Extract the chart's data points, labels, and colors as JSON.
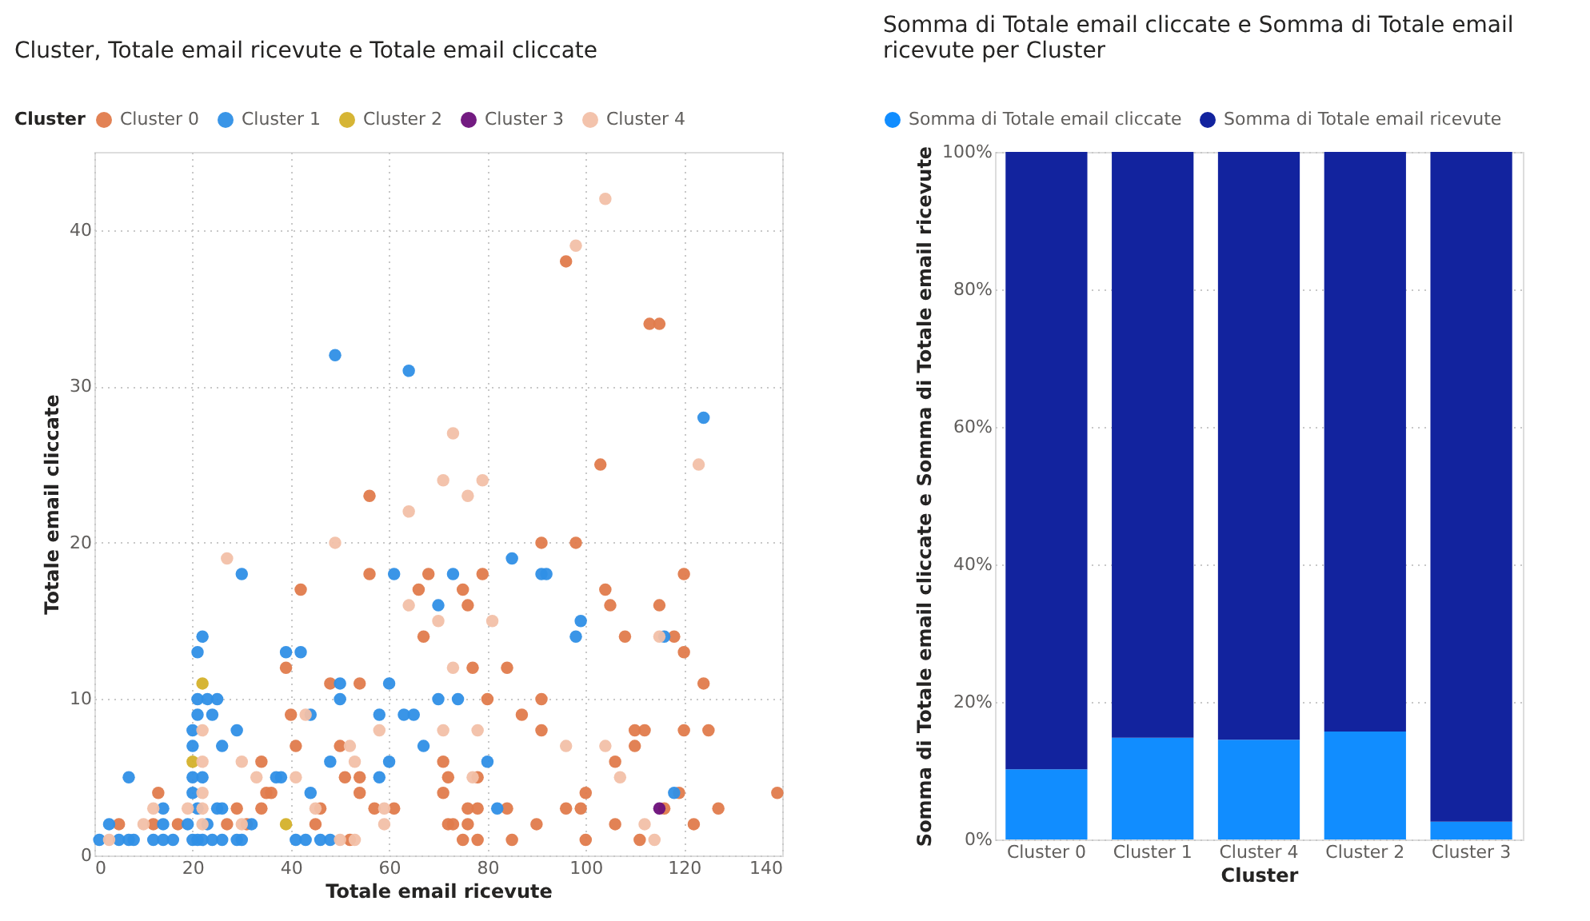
{
  "chart_data": [
    {
      "type": "scatter",
      "title": "Cluster, Totale email ricevute e Totale email cliccate",
      "xlabel": "Totale email ricevute",
      "ylabel": "Totale email cliccate",
      "legend_title": "Cluster",
      "legend": "top left",
      "grid": true,
      "marker": "circle",
      "xlim": [
        0,
        140
      ],
      "xticks": [
        0,
        20,
        40,
        60,
        80,
        100,
        120,
        140
      ],
      "ylim": [
        0,
        45
      ],
      "yticks": [
        0,
        10,
        20,
        30,
        40
      ],
      "series": [
        {
          "name": "Cluster 0",
          "color": "#e07b4c",
          "x": [
            96,
            113,
            115,
            103,
            56,
            56,
            68,
            42,
            66,
            67,
            39,
            48,
            54,
            40,
            41,
            50,
            34,
            71,
            51,
            54,
            72,
            13,
            35,
            36,
            54,
            71,
            29,
            34,
            46,
            57,
            61,
            5,
            12,
            17,
            27,
            31,
            45,
            72,
            52,
            91,
            98,
            79,
            120,
            75,
            104,
            76,
            105,
            115,
            108,
            118,
            120,
            77,
            84,
            124,
            80,
            91,
            87,
            91,
            110,
            112,
            120,
            125,
            110,
            106,
            78,
            100,
            119,
            139,
            76,
            78,
            84,
            96,
            99,
            116,
            127,
            73,
            76,
            90,
            106,
            122,
            75,
            78,
            85,
            100,
            111
          ],
          "values": [
            38,
            34,
            34,
            25,
            23,
            18,
            18,
            17,
            17,
            14,
            12,
            11,
            11,
            9,
            7,
            7,
            6,
            6,
            5,
            5,
            5,
            4,
            4,
            4,
            4,
            4,
            3,
            3,
            3,
            3,
            3,
            2,
            2,
            2,
            2,
            2,
            2,
            2,
            1,
            20,
            20,
            18,
            18,
            17,
            17,
            16,
            16,
            16,
            14,
            14,
            13,
            12,
            12,
            11,
            10,
            10,
            9,
            8,
            8,
            8,
            8,
            8,
            7,
            6,
            5,
            4,
            4,
            4,
            3,
            3,
            3,
            3,
            3,
            3,
            3,
            2,
            2,
            2,
            2,
            2,
            1,
            1,
            1,
            1,
            1
          ]
        },
        {
          "name": "Cluster 1",
          "color": "#2f8fe6",
          "x": [
            49,
            64,
            124,
            30,
            61,
            73,
            70,
            22,
            21,
            39,
            42,
            50,
            60,
            21,
            23,
            25,
            50,
            70,
            21,
            24,
            44,
            58,
            63,
            65,
            20,
            29,
            20,
            26,
            67,
            48,
            60,
            7,
            20,
            22,
            37,
            38,
            58,
            20,
            44,
            14,
            21,
            25,
            26,
            3,
            14,
            19,
            23,
            32,
            1,
            5,
            7,
            8,
            12,
            14,
            16,
            20,
            21,
            22,
            24,
            26,
            29,
            30,
            41,
            43,
            46,
            48,
            85,
            91,
            92,
            99,
            98,
            116,
            74,
            80,
            118,
            82
          ],
          "values": [
            32,
            31,
            28,
            18,
            18,
            18,
            16,
            14,
            13,
            13,
            13,
            11,
            11,
            10,
            10,
            10,
            10,
            10,
            9,
            9,
            9,
            9,
            9,
            9,
            8,
            8,
            7,
            7,
            7,
            6,
            6,
            5,
            5,
            5,
            5,
            5,
            5,
            4,
            4,
            3,
            3,
            3,
            3,
            2,
            2,
            2,
            2,
            2,
            1,
            1,
            1,
            1,
            1,
            1,
            1,
            1,
            1,
            1,
            1,
            1,
            1,
            1,
            1,
            1,
            1,
            1,
            19,
            18,
            18,
            15,
            14,
            14,
            10,
            6,
            4,
            3
          ]
        },
        {
          "name": "Cluster 2",
          "color": "#d4b12a",
          "x": [
            22,
            20,
            39
          ],
          "values": [
            11,
            6,
            2
          ]
        },
        {
          "name": "Cluster 3",
          "color": "#6b0f7a",
          "x": [
            115
          ],
          "values": [
            3
          ]
        },
        {
          "name": "Cluster 4",
          "color": "#f2c0a8",
          "x": [
            104,
            98,
            73,
            123,
            71,
            79,
            76,
            64,
            49,
            27,
            64,
            70,
            81,
            115,
            73,
            43,
            22,
            58,
            71,
            78,
            52,
            96,
            104,
            22,
            30,
            53,
            33,
            41,
            77,
            107,
            22,
            12,
            19,
            22,
            45,
            59,
            10,
            22,
            30,
            59,
            112,
            3,
            50,
            53,
            114
          ],
          "values": [
            42,
            39,
            27,
            25,
            24,
            24,
            23,
            22,
            20,
            19,
            16,
            15,
            15,
            14,
            12,
            9,
            8,
            8,
            8,
            8,
            7,
            7,
            7,
            6,
            6,
            6,
            5,
            5,
            5,
            5,
            4,
            3,
            3,
            3,
            3,
            3,
            2,
            2,
            2,
            2,
            2,
            1,
            1,
            1,
            1
          ]
        }
      ]
    },
    {
      "type": "bar",
      "stacked": true,
      "title": "Somma di Totale email cliccate e Somma di Totale email ricevute per Cluster",
      "xlabel": "Cluster",
      "ylabel": "Somma di Totale email cliccate e Somma di Totale email ricevute",
      "legend": "top left",
      "grid": "y",
      "categories": [
        "Cluster 0",
        "Cluster 1",
        "Cluster 4",
        "Cluster 2",
        "Cluster 3"
      ],
      "ylim": [
        0,
        100
      ],
      "yticks": [
        {
          "value": 0,
          "label": "0%"
        },
        {
          "value": 20,
          "label": "20%"
        },
        {
          "value": 40,
          "label": "40%"
        },
        {
          "value": 60,
          "label": "60%"
        },
        {
          "value": 80,
          "label": "80%"
        },
        {
          "value": 100,
          "label": "100%"
        }
      ],
      "series": [
        {
          "name": "Somma di Totale email cliccate",
          "color": "#118dff",
          "values": [
            10.2,
            14.8,
            14.5,
            15.7,
            2.6
          ]
        },
        {
          "name": "Somma di Totale email ricevute",
          "color": "#12239e",
          "values": [
            89.8,
            85.2,
            85.5,
            84.3,
            97.4
          ]
        }
      ]
    }
  ]
}
